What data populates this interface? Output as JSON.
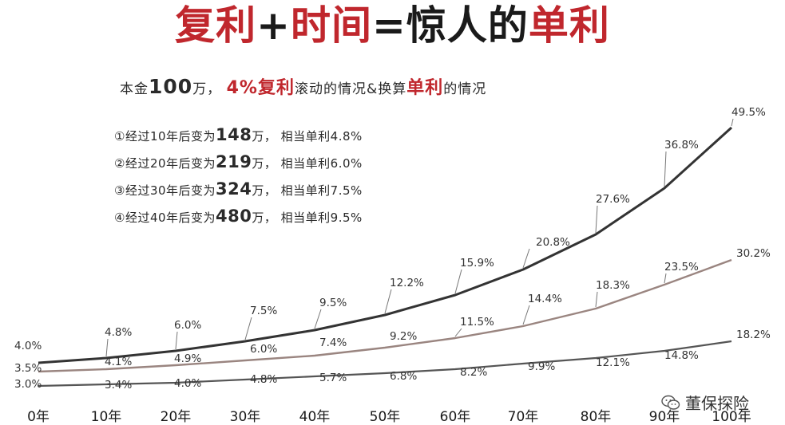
{
  "title": {
    "part1": "复利",
    "part2": "+",
    "part3": "时间",
    "part4": "=",
    "part5": "惊人的",
    "part6": "单利"
  },
  "subtitle": {
    "prefix": "本金",
    "principal": "100",
    "unit_comma": "万，",
    "rate": "4%复利",
    "mid": "滚动的情况&换算",
    "simple": "单利",
    "suffix": "的情况"
  },
  "notes": [
    {
      "lead": "①经过10年后变为",
      "amount": "148",
      "tail": "万， 相当单利4.8%"
    },
    {
      "lead": "②经过20年后变为",
      "amount": "219",
      "tail": "万， 相当单利6.0%"
    },
    {
      "lead": "③经过30年后变为",
      "amount": "324",
      "tail": "万， 相当单利7.5%"
    },
    {
      "lead": "④经过40年后变为",
      "amount": "480",
      "tail": "万， 相当单利9.5%"
    }
  ],
  "chart_data": {
    "type": "line",
    "categories": [
      "0年",
      "10年",
      "20年",
      "30年",
      "40年",
      "50年",
      "60年",
      "70年",
      "80年",
      "90年",
      "100年"
    ],
    "x": [
      0,
      10,
      20,
      30,
      40,
      50,
      60,
      70,
      80,
      90,
      100
    ],
    "series": [
      {
        "values": [
          4.0,
          4.8,
          6.0,
          7.5,
          9.5,
          12.2,
          15.9,
          20.8,
          27.6,
          36.8,
          49.5
        ],
        "labels": [
          "4.0%",
          "4.8%",
          "6.0%",
          "7.5%",
          "9.5%",
          "12.2%",
          "15.9%",
          "20.8%",
          "27.6%",
          "36.8%",
          "49.5%"
        ],
        "color": "#333333"
      },
      {
        "values": [
          3.5,
          4.1,
          4.9,
          6.0,
          7.4,
          9.2,
          11.5,
          14.4,
          18.3,
          23.5,
          30.2
        ],
        "labels": [
          "3.5%",
          "4.1%",
          "4.9%",
          "6.0%",
          "7.4%",
          "9.2%",
          "11.5%",
          "14.4%",
          "18.3%",
          "23.5%",
          "30.2%"
        ],
        "color": "#9a8580"
      },
      {
        "values": [
          3.0,
          3.4,
          4.0,
          4.8,
          5.7,
          6.8,
          8.2,
          9.9,
          12.1,
          14.8,
          18.2
        ],
        "labels": [
          "3.0%",
          "3.4%",
          "4.0%",
          "4.8%",
          "5.7%",
          "6.8%",
          "8.2%",
          "9.9%",
          "12.1%",
          "14.8%",
          "18.2%"
        ],
        "color": "#555555"
      }
    ],
    "grid": false
  },
  "watermark": {
    "text": "董保探险",
    "icon": "wechat-icon"
  }
}
